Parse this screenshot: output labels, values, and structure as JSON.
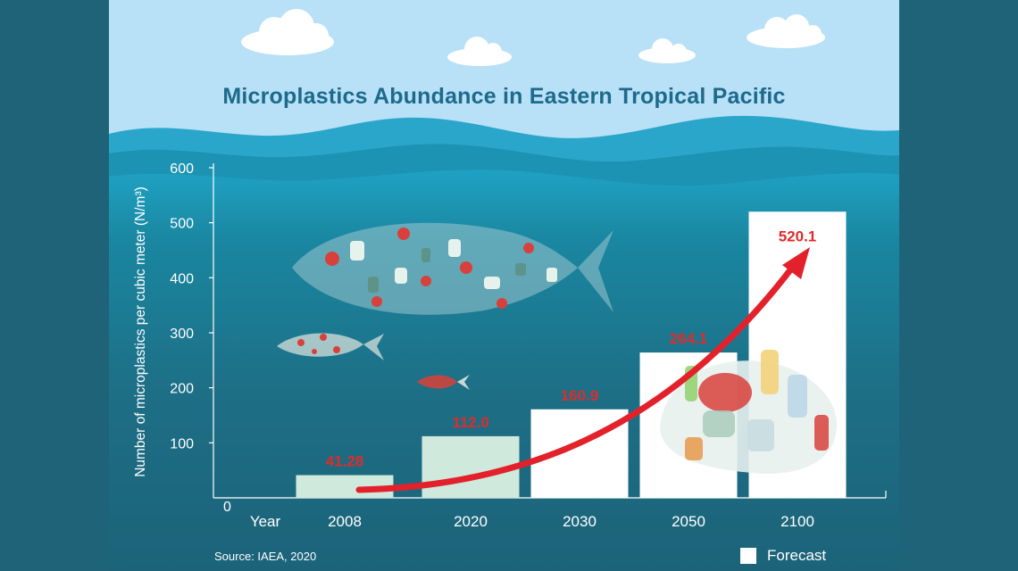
{
  "title": "Microplastics Abundance in Eastern Tropical Pacific",
  "source": "Source: IAEA, 2020",
  "legend": {
    "forecast_label": "Forecast",
    "forecast_color": "#ffffff"
  },
  "colors": {
    "sky": "#b8e0f6",
    "ocean_deep": "#1b6a80",
    "ocean_mid": "#1f92ae",
    "observed_bar": "#cfe9dc",
    "forecast_bar": "#ffffff",
    "value_label": "#e02b2b",
    "arrow": "#e3212b",
    "title": "#1c6a8c"
  },
  "chart_data": {
    "type": "bar",
    "title": "Microplastics Abundance in Eastern Tropical Pacific",
    "ylabel": "Number of microplastics per cubic meter (N/m³)",
    "xlabel": "Year",
    "categories": [
      "2008",
      "2020",
      "2030",
      "2050",
      "2100"
    ],
    "values": [
      41.28,
      112.0,
      160.9,
      264.1,
      520.1
    ],
    "value_labels": [
      "41.28",
      "112.0",
      "160.9",
      "264.1",
      "520.1"
    ],
    "forecast": [
      false,
      false,
      true,
      true,
      true
    ],
    "ylim": [
      0,
      600
    ],
    "yticks": [
      100,
      200,
      300,
      400,
      500,
      600
    ],
    "yticks_labels": [
      "100",
      "200",
      "300",
      "400",
      "500",
      "600"
    ],
    "origin_label": "0",
    "grid": false,
    "legend_position": "bottom-right",
    "legend": [
      {
        "name": "Forecast",
        "color": "#ffffff"
      }
    ]
  }
}
